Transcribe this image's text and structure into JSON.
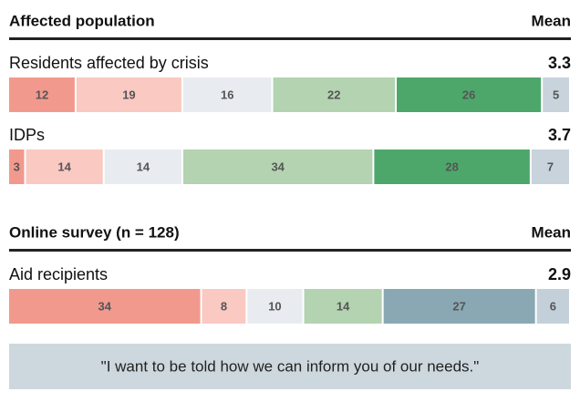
{
  "chart_data": [
    {
      "type": "bar",
      "title": "Affected population",
      "mean_label": "Mean",
      "categories": [
        "Residents affected by crisis",
        "IDPs"
      ],
      "means": [
        3.3,
        3.7
      ],
      "series": [
        {
          "color": "#f2998e",
          "values": [
            12,
            3
          ]
        },
        {
          "color": "#f9c9c2",
          "values": [
            19,
            14
          ]
        },
        {
          "color": "#e8ebf0",
          "values": [
            16,
            14
          ]
        },
        {
          "color": "#b3d3b1",
          "values": [
            22,
            34
          ]
        },
        {
          "color": "#4ea76a",
          "values": [
            26,
            28
          ]
        },
        {
          "color": "#c8d3dc",
          "values": [
            5,
            7
          ]
        }
      ]
    },
    {
      "type": "bar",
      "title": "Online survey (n = 128)",
      "mean_label": "Mean",
      "categories": [
        "Aid recipients"
      ],
      "means": [
        2.9
      ],
      "series": [
        {
          "color": "#f2998e",
          "values": [
            34
          ]
        },
        {
          "color": "#f9c9c2",
          "values": [
            8
          ]
        },
        {
          "color": "#e8ebf0",
          "values": [
            10
          ]
        },
        {
          "color": "#b3d3b1",
          "values": [
            14
          ]
        },
        {
          "color": "#8aa8b3",
          "values": [
            27
          ]
        },
        {
          "color": "#c3d0d9",
          "values": [
            6
          ]
        }
      ]
    }
  ],
  "quote": "\"I want to be told how we can inform you of our needs.\""
}
